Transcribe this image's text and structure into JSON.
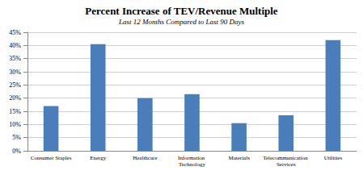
{
  "chart_data": {
    "type": "bar",
    "title": "Percent Increase of TEV/Revenue Multiple",
    "subtitle": "Last 12 Months Compared to Last 90 Days",
    "categories": [
      "Consumer Staples",
      "Energy",
      "Healthcare",
      "Information Technology",
      "Materials",
      "Telecommunication Services",
      "Utilities"
    ],
    "values": [
      17,
      40.5,
      20,
      21.5,
      10.5,
      13.5,
      42
    ],
    "color": "#4a7ebb",
    "ylim": [
      0,
      45
    ],
    "yticks": [
      {
        "value": 0,
        "label": "0%"
      },
      {
        "value": 5,
        "label": "5%"
      },
      {
        "value": 10,
        "label": "10%"
      },
      {
        "value": 15,
        "label": "15%"
      },
      {
        "value": 20,
        "label": "20%"
      },
      {
        "value": 25,
        "label": "25%"
      },
      {
        "value": 30,
        "label": "30%"
      },
      {
        "value": 35,
        "label": "35%"
      },
      {
        "value": 40,
        "label": "40%"
      },
      {
        "value": 45,
        "label": "45%"
      }
    ],
    "grid": true
  }
}
